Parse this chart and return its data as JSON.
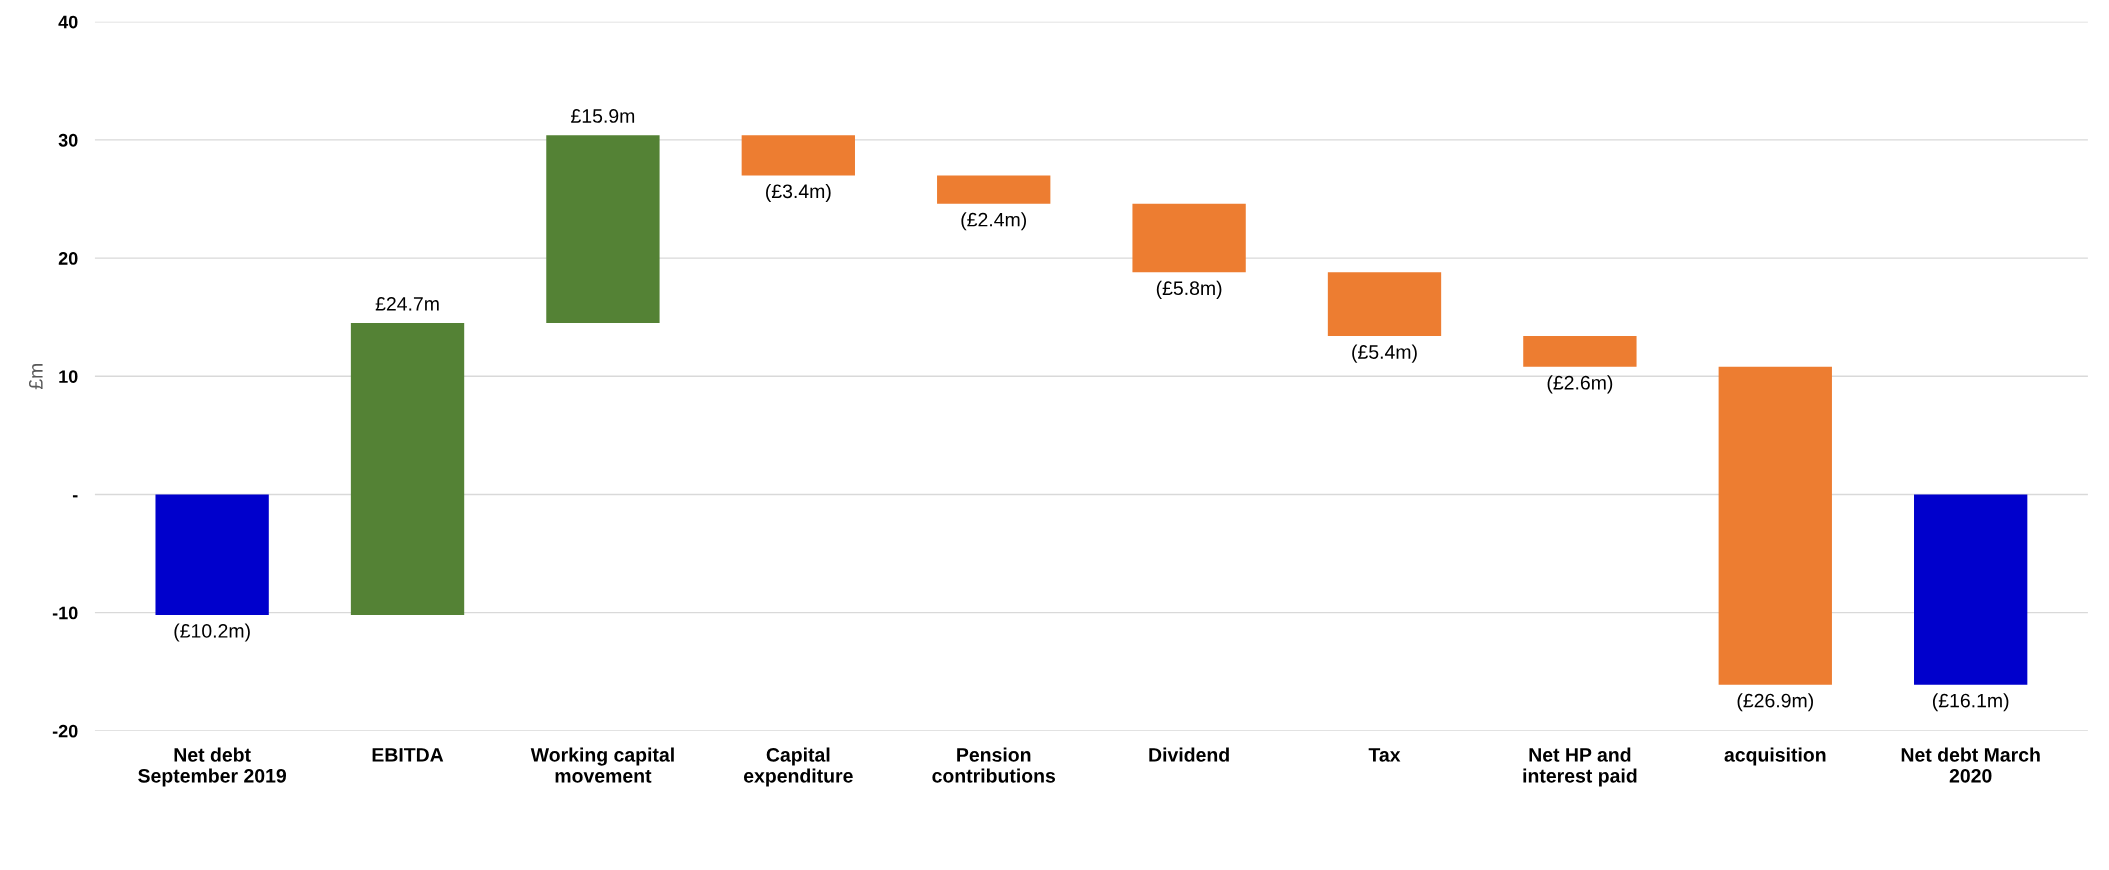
{
  "chart_data": {
    "type": "bar",
    "ylabel": "£m",
    "categories": [
      "Net debt\nSeptember 2019",
      "EBITDA",
      "Working capital\nmovement",
      "Capital\nexpenditure",
      "Pension\ncontributions",
      "Dividend",
      "Tax",
      "Net HP and\ninterest paid",
      "acquisition",
      "Net debt March\n2020"
    ],
    "values": [
      -10.2,
      24.7,
      15.9,
      -3.4,
      -2.4,
      -5.8,
      -5.4,
      -2.6,
      -26.9,
      -16.1
    ],
    "base": [
      0,
      -10.2,
      14.5,
      30.4,
      27.0,
      24.6,
      18.8,
      13.4,
      10.8,
      0
    ],
    "colors": [
      "#0000cc",
      "#548235",
      "#548235",
      "#ed7d31",
      "#ed7d31",
      "#ed7d31",
      "#ed7d31",
      "#ed7d31",
      "#ed7d31",
      "#0000cc"
    ],
    "value_labels": [
      "(£10.2m)",
      "£24.7m",
      "£15.9m",
      "(£3.4m)",
      "(£2.4m)",
      "(£5.8m)",
      "(£5.4m)",
      "(£2.6m)",
      "(£26.9m)",
      "(£16.1m)"
    ],
    "ylim": [
      -20,
      40
    ],
    "yticks": [
      -20,
      -10,
      {
        "value": 0,
        "label": "-"
      },
      10,
      20,
      30,
      40
    ],
    "grid": "y"
  }
}
